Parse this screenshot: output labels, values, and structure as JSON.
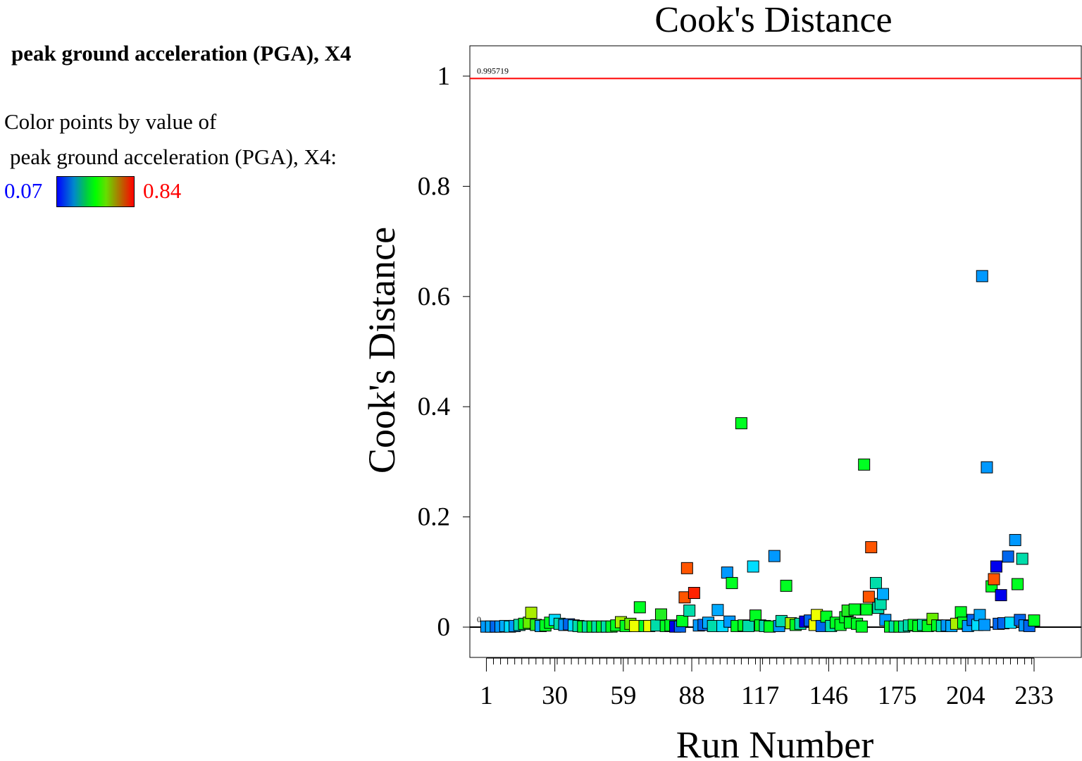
{
  "sidebar": {
    "title": "peak ground acceleration (PGA), X4",
    "legend_line1": "Color points by value of",
    "legend_line2": "peak ground acceleration (PGA), X4:",
    "legend_min": "0.07",
    "legend_max": "0.84"
  },
  "colors": {
    "legend_min_text": "#0000ff",
    "legend_max_text": "#ff0000",
    "threshold_line": "#ff0000",
    "zero_line": "#000000",
    "palette": {
      "blue": "#0000ee",
      "mid_blue": "#0066ee",
      "sky_blue": "#0099ff",
      "light_blue": "#00aaff",
      "cyan": "#00ddff",
      "teal": "#00ddaa",
      "green": "#00ff22",
      "green_alt": "#22ee22",
      "lime": "#66ee00",
      "yellow_green": "#aaee00",
      "yellow": "#eeff00",
      "orange": "#ff5500",
      "red": "#ff2200"
    }
  },
  "chart_data": {
    "type": "scatter",
    "title": "Cook's Distance",
    "xlabel": "Run Number",
    "ylabel": "Cook's Distance",
    "xlim": [
      -6,
      253
    ],
    "ylim": [
      -0.055,
      1.055
    ],
    "x_ticks": [
      1,
      30,
      59,
      88,
      117,
      146,
      175,
      204,
      233
    ],
    "x_tick_labels": [
      "1",
      "30",
      "59",
      "88",
      "117",
      "146",
      "175",
      "204",
      "233"
    ],
    "y_ticks": [
      0,
      0.2,
      0.4,
      0.6,
      0.8,
      1
    ],
    "y_tick_labels": [
      "0",
      "0.2",
      "0.4",
      "0.6",
      "0.8",
      "1"
    ],
    "minor_x_tick_step": 3,
    "threshold": {
      "value": 0.995719,
      "label": "0.995719"
    },
    "zero_line": {
      "value": 0,
      "label": "0"
    },
    "color_scale": {
      "variable": "peak ground acceleration (PGA), X4",
      "min": 0.07,
      "max": 0.84
    },
    "points": [
      {
        "x": 1,
        "y": 0.001,
        "c": "sky_blue"
      },
      {
        "x": 3,
        "y": 0.001,
        "c": "light_blue"
      },
      {
        "x": 5,
        "y": 0.001,
        "c": "mid_blue"
      },
      {
        "x": 7,
        "y": 0.001,
        "c": "sky_blue"
      },
      {
        "x": 9,
        "y": 0.002,
        "c": "light_blue"
      },
      {
        "x": 11,
        "y": 0.001,
        "c": "cyan"
      },
      {
        "x": 13,
        "y": 0.002,
        "c": "sky_blue"
      },
      {
        "x": 15,
        "y": 0.004,
        "c": "teal"
      },
      {
        "x": 17,
        "y": 0.006,
        "c": "green"
      },
      {
        "x": 19,
        "y": 0.008,
        "c": "lime"
      },
      {
        "x": 20,
        "y": 0.026,
        "c": "yellow_green"
      },
      {
        "x": 22,
        "y": 0.004,
        "c": "green_alt"
      },
      {
        "x": 24,
        "y": 0.002,
        "c": "light_blue"
      },
      {
        "x": 26,
        "y": 0.003,
        "c": "green"
      },
      {
        "x": 28,
        "y": 0.008,
        "c": "green"
      },
      {
        "x": 30,
        "y": 0.013,
        "c": "cyan"
      },
      {
        "x": 32,
        "y": 0.006,
        "c": "teal"
      },
      {
        "x": 34,
        "y": 0.004,
        "c": "sky_blue"
      },
      {
        "x": 36,
        "y": 0.005,
        "c": "mid_blue"
      },
      {
        "x": 38,
        "y": 0.003,
        "c": "cyan"
      },
      {
        "x": 40,
        "y": 0.002,
        "c": "teal"
      },
      {
        "x": 42,
        "y": 0.001,
        "c": "green"
      },
      {
        "x": 44,
        "y": 0.001,
        "c": "teal"
      },
      {
        "x": 46,
        "y": 0.001,
        "c": "green"
      },
      {
        "x": 48,
        "y": 0.001,
        "c": "teal"
      },
      {
        "x": 50,
        "y": 0.001,
        "c": "green"
      },
      {
        "x": 52,
        "y": 0.001,
        "c": "teal"
      },
      {
        "x": 54,
        "y": 0.001,
        "c": "green"
      },
      {
        "x": 56,
        "y": 0.003,
        "c": "green"
      },
      {
        "x": 58,
        "y": 0.009,
        "c": "yellow_green"
      },
      {
        "x": 60,
        "y": 0.002,
        "c": "green"
      },
      {
        "x": 62,
        "y": 0.006,
        "c": "lime"
      },
      {
        "x": 64,
        "y": 0.002,
        "c": "yellow"
      },
      {
        "x": 66,
        "y": 0.036,
        "c": "green"
      },
      {
        "x": 68,
        "y": 0.002,
        "c": "green"
      },
      {
        "x": 70,
        "y": 0.002,
        "c": "yellow"
      },
      {
        "x": 73,
        "y": 0.003,
        "c": "teal"
      },
      {
        "x": 75,
        "y": 0.023,
        "c": "green_alt"
      },
      {
        "x": 77,
        "y": 0.002,
        "c": "green"
      },
      {
        "x": 79,
        "y": 0.003,
        "c": "green"
      },
      {
        "x": 81,
        "y": 0.001,
        "c": "blue"
      },
      {
        "x": 83,
        "y": 0.001,
        "c": "mid_blue"
      },
      {
        "x": 84,
        "y": 0.011,
        "c": "green"
      },
      {
        "x": 85,
        "y": 0.054,
        "c": "orange"
      },
      {
        "x": 86,
        "y": 0.107,
        "c": "orange"
      },
      {
        "x": 87,
        "y": 0.03,
        "c": "teal"
      },
      {
        "x": 89,
        "y": 0.062,
        "c": "red"
      },
      {
        "x": 91,
        "y": 0.003,
        "c": "sky_blue"
      },
      {
        "x": 93,
        "y": 0.004,
        "c": "mid_blue"
      },
      {
        "x": 95,
        "y": 0.008,
        "c": "light_blue"
      },
      {
        "x": 97,
        "y": 0.002,
        "c": "teal"
      },
      {
        "x": 99,
        "y": 0.031,
        "c": "light_blue"
      },
      {
        "x": 101,
        "y": 0.002,
        "c": "cyan"
      },
      {
        "x": 103,
        "y": 0.099,
        "c": "sky_blue"
      },
      {
        "x": 104,
        "y": 0.01,
        "c": "sky_blue"
      },
      {
        "x": 105,
        "y": 0.08,
        "c": "green"
      },
      {
        "x": 107,
        "y": 0.002,
        "c": "green"
      },
      {
        "x": 109,
        "y": 0.37,
        "c": "green"
      },
      {
        "x": 110,
        "y": 0.003,
        "c": "green"
      },
      {
        "x": 112,
        "y": 0.002,
        "c": "teal"
      },
      {
        "x": 114,
        "y": 0.11,
        "c": "cyan"
      },
      {
        "x": 115,
        "y": 0.021,
        "c": "green"
      },
      {
        "x": 117,
        "y": 0.003,
        "c": "green"
      },
      {
        "x": 119,
        "y": 0.002,
        "c": "teal"
      },
      {
        "x": 121,
        "y": 0.001,
        "c": "green"
      },
      {
        "x": 123,
        "y": 0.129,
        "c": "sky_blue"
      },
      {
        "x": 125,
        "y": 0.002,
        "c": "sky_blue"
      },
      {
        "x": 126,
        "y": 0.011,
        "c": "teal"
      },
      {
        "x": 128,
        "y": 0.075,
        "c": "green"
      },
      {
        "x": 130,
        "y": 0.007,
        "c": "yellow_green"
      },
      {
        "x": 132,
        "y": 0.004,
        "c": "green"
      },
      {
        "x": 134,
        "y": 0.006,
        "c": "teal"
      },
      {
        "x": 136,
        "y": 0.01,
        "c": "blue"
      },
      {
        "x": 138,
        "y": 0.012,
        "c": "mid_blue"
      },
      {
        "x": 140,
        "y": 0.004,
        "c": "yellow"
      },
      {
        "x": 141,
        "y": 0.022,
        "c": "yellow"
      },
      {
        "x": 143,
        "y": 0.002,
        "c": "mid_blue"
      },
      {
        "x": 145,
        "y": 0.019,
        "c": "green"
      },
      {
        "x": 147,
        "y": 0.002,
        "c": "teal"
      },
      {
        "x": 149,
        "y": 0.008,
        "c": "green"
      },
      {
        "x": 151,
        "y": 0.004,
        "c": "green"
      },
      {
        "x": 153,
        "y": 0.018,
        "c": "green"
      },
      {
        "x": 154,
        "y": 0.03,
        "c": "green_alt"
      },
      {
        "x": 155,
        "y": 0.008,
        "c": "green"
      },
      {
        "x": 157,
        "y": 0.032,
        "c": "green"
      },
      {
        "x": 158,
        "y": 0.006,
        "c": "green"
      },
      {
        "x": 160,
        "y": 0.001,
        "c": "green"
      },
      {
        "x": 161,
        "y": 0.295,
        "c": "green"
      },
      {
        "x": 162,
        "y": 0.032,
        "c": "green"
      },
      {
        "x": 163,
        "y": 0.055,
        "c": "orange"
      },
      {
        "x": 164,
        "y": 0.145,
        "c": "orange"
      },
      {
        "x": 166,
        "y": 0.08,
        "c": "teal"
      },
      {
        "x": 167,
        "y": 0.035,
        "c": "teal"
      },
      {
        "x": 168,
        "y": 0.042,
        "c": "teal"
      },
      {
        "x": 169,
        "y": 0.06,
        "c": "light_blue"
      },
      {
        "x": 170,
        "y": 0.013,
        "c": "sky_blue"
      },
      {
        "x": 172,
        "y": 0.001,
        "c": "green"
      },
      {
        "x": 174,
        "y": 0.001,
        "c": "teal"
      },
      {
        "x": 176,
        "y": 0.001,
        "c": "green"
      },
      {
        "x": 178,
        "y": 0.001,
        "c": "teal"
      },
      {
        "x": 180,
        "y": 0.003,
        "c": "teal"
      },
      {
        "x": 182,
        "y": 0.004,
        "c": "green"
      },
      {
        "x": 184,
        "y": 0.002,
        "c": "green"
      },
      {
        "x": 186,
        "y": 0.004,
        "c": "teal"
      },
      {
        "x": 188,
        "y": 0.002,
        "c": "green"
      },
      {
        "x": 190,
        "y": 0.015,
        "c": "lime"
      },
      {
        "x": 192,
        "y": 0.003,
        "c": "green"
      },
      {
        "x": 194,
        "y": 0.002,
        "c": "teal"
      },
      {
        "x": 196,
        "y": 0.003,
        "c": "sky_blue"
      },
      {
        "x": 198,
        "y": 0.002,
        "c": "light_blue"
      },
      {
        "x": 200,
        "y": 0.006,
        "c": "yellow_green"
      },
      {
        "x": 202,
        "y": 0.027,
        "c": "green"
      },
      {
        "x": 203,
        "y": 0.008,
        "c": "green"
      },
      {
        "x": 205,
        "y": 0.002,
        "c": "sky_blue"
      },
      {
        "x": 207,
        "y": 0.013,
        "c": "mid_blue"
      },
      {
        "x": 209,
        "y": 0.004,
        "c": "cyan"
      },
      {
        "x": 210,
        "y": 0.022,
        "c": "light_blue"
      },
      {
        "x": 211,
        "y": 0.637,
        "c": "sky_blue"
      },
      {
        "x": 212,
        "y": 0.004,
        "c": "sky_blue"
      },
      {
        "x": 213,
        "y": 0.29,
        "c": "sky_blue"
      },
      {
        "x": 215,
        "y": 0.074,
        "c": "green"
      },
      {
        "x": 216,
        "y": 0.087,
        "c": "orange"
      },
      {
        "x": 217,
        "y": 0.11,
        "c": "blue"
      },
      {
        "x": 218,
        "y": 0.006,
        "c": "mid_blue"
      },
      {
        "x": 219,
        "y": 0.058,
        "c": "blue"
      },
      {
        "x": 220,
        "y": 0.007,
        "c": "mid_blue"
      },
      {
        "x": 222,
        "y": 0.128,
        "c": "mid_blue"
      },
      {
        "x": 223,
        "y": 0.008,
        "c": "cyan"
      },
      {
        "x": 225,
        "y": 0.158,
        "c": "sky_blue"
      },
      {
        "x": 226,
        "y": 0.078,
        "c": "green"
      },
      {
        "x": 227,
        "y": 0.013,
        "c": "mid_blue"
      },
      {
        "x": 228,
        "y": 0.124,
        "c": "teal"
      },
      {
        "x": 229,
        "y": 0.003,
        "c": "sky_blue"
      },
      {
        "x": 231,
        "y": 0.002,
        "c": "mid_blue"
      },
      {
        "x": 233,
        "y": 0.012,
        "c": "green"
      }
    ]
  }
}
